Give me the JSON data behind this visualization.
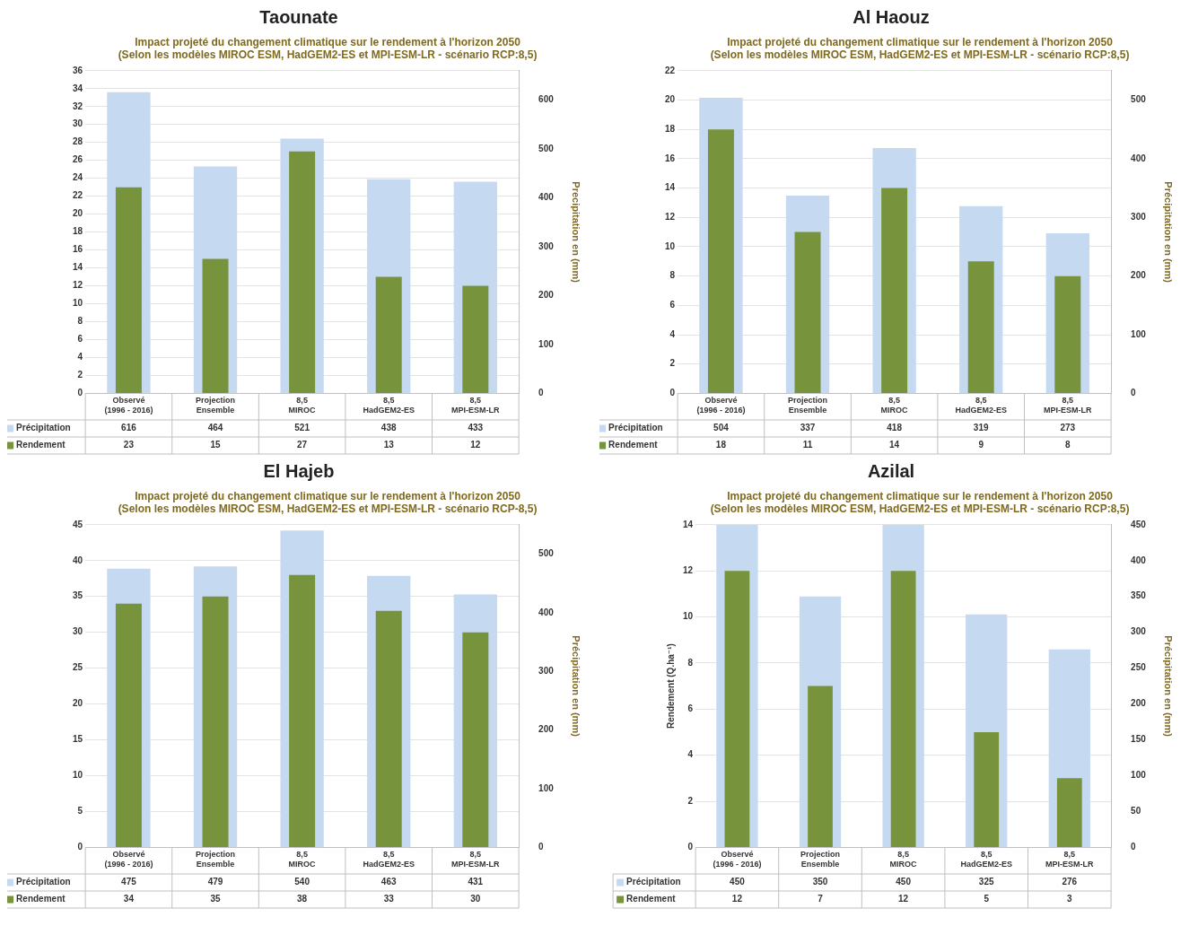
{
  "chart_data": [
    {
      "type": "bar",
      "title": "Taounate",
      "subtitle": "Impact projeté du changement climatique sur le rendement à l'horizon 2050\n(Selon les modèles MIROC ESM, HadGEM2-ES et MPI-ESM-LR - scénario RCP:8,5)",
      "categories": [
        "Observé\n(1996 - 2016)",
        "Projection\nEnsemble",
        "8,5\nMIROC",
        "8,5\nHadGEM2-ES",
        "8,5\nMPI-ESM-LR"
      ],
      "series": [
        {
          "name": "Précipitation",
          "color": "#c5d9f1",
          "axis": "y2",
          "values": [
            616,
            464,
            521,
            438,
            433
          ]
        },
        {
          "name": "Rendement",
          "color": "#77933c",
          "values": [
            23,
            15,
            27,
            13,
            12
          ]
        }
      ],
      "ylim": [
        0,
        36
      ],
      "yticks": [
        0,
        2,
        4,
        6,
        8,
        10,
        12,
        14,
        16,
        18,
        20,
        22,
        24,
        26,
        28,
        30,
        32,
        34,
        36
      ],
      "y2lim": [
        0,
        660
      ],
      "y2ticks": [
        0,
        100,
        200,
        300,
        400,
        500,
        600
      ],
      "y2label": "Precipitation en (mm)",
      "grid": "y",
      "data_labels": true,
      "legend": "bottom left"
    },
    {
      "type": "bar",
      "title": "Al Haouz",
      "subtitle": "Impact projeté du changement climatique sur le rendement à l'horizon 2050\n(Selon les modèles MIROC ESM, HadGEM2-ES et MPI-ESM-LR - scénario RCP:8,5)",
      "categories": [
        "Observé\n(1996 - 2016)",
        "Projection\nEnsemble",
        "8,5\nMIROC",
        "8,5\nHadGEM2-ES",
        "8,5\nMPI-ESM-LR"
      ],
      "series": [
        {
          "name": "Précipitation",
          "color": "#c5d9f1",
          "axis": "y2",
          "values": [
            504,
            337,
            418,
            319,
            273
          ]
        },
        {
          "name": "Rendement",
          "color": "#77933c",
          "values": [
            18,
            11,
            14,
            9,
            8
          ]
        }
      ],
      "ylim": [
        0,
        22
      ],
      "yticks": [
        0,
        2,
        4,
        6,
        8,
        10,
        12,
        14,
        16,
        18,
        20,
        22
      ],
      "y2lim": [
        0,
        550
      ],
      "y2ticks": [
        0,
        100,
        200,
        300,
        400,
        500
      ],
      "y2label": "Précipitation en (mm)",
      "grid": "y",
      "data_labels": true,
      "legend": "bottom left"
    },
    {
      "type": "bar",
      "title": "El Hajeb",
      "subtitle": "Impact projeté du changement climatique sur le rendement à l'horizon 2050\n(Selon les modèles MIROC ESM, HadGEM2-ES et MPI-ESM-LR - scénario RCP-8,5)",
      "categories": [
        "Observé\n(1996 - 2016)",
        "Projection\nEnsemble",
        "8,5\nMIROC",
        "8,5\nHadGEM2-ES",
        "8,5\nMPI-ESM-LR"
      ],
      "series": [
        {
          "name": "Précipitation",
          "color": "#c5d9f1",
          "axis": "y2",
          "values": [
            475,
            479,
            540,
            463,
            431
          ]
        },
        {
          "name": "Rendement",
          "color": "#77933c",
          "values": [
            34,
            35,
            38,
            33,
            30
          ]
        }
      ],
      "ylim": [
        0,
        45
      ],
      "yticks": [
        0,
        5,
        10,
        15,
        20,
        25,
        30,
        35,
        40,
        45
      ],
      "y2lim": [
        0,
        550
      ],
      "y2ticks": [
        0,
        100,
        200,
        300,
        400,
        500
      ],
      "y2label": "Précipitation en (mm)",
      "grid": "y",
      "data_labels": true,
      "legend": "bottom left"
    },
    {
      "type": "bar",
      "title": "Azilal",
      "subtitle": "Impact projeté du changement climatique sur le rendement à l'horizon 2050\n(Selon les modèles MIROC ESM, HadGEM2-ES et MPI-ESM-LR - scénario RCP:8,5)",
      "categories": [
        "Observé\n(1996 - 2016)",
        "Projection\nEnsemble",
        "8,5\nMIROC",
        "8,5\nHadGEM2-ES",
        "8,5\nMPI-ESM-LR"
      ],
      "series": [
        {
          "name": "Précipitation",
          "color": "#c5d9f1",
          "axis": "y2",
          "values": [
            450,
            350,
            450,
            325,
            276
          ]
        },
        {
          "name": "Rendement",
          "color": "#77933c",
          "values": [
            12,
            7,
            12,
            5,
            3
          ]
        }
      ],
      "ylim": [
        0,
        14
      ],
      "yticks": [
        0,
        2,
        4,
        6,
        8,
        10,
        12,
        14
      ],
      "y2lim": [
        0,
        450
      ],
      "y2ticks": [
        0,
        50,
        100,
        150,
        200,
        250,
        300,
        350,
        400,
        450
      ],
      "ylabel": "Rendement (Q.ha⁻¹)",
      "y2label": "Précipitation en (mm)",
      "grid": "y",
      "data_labels": true,
      "legend": "bottom left"
    }
  ]
}
